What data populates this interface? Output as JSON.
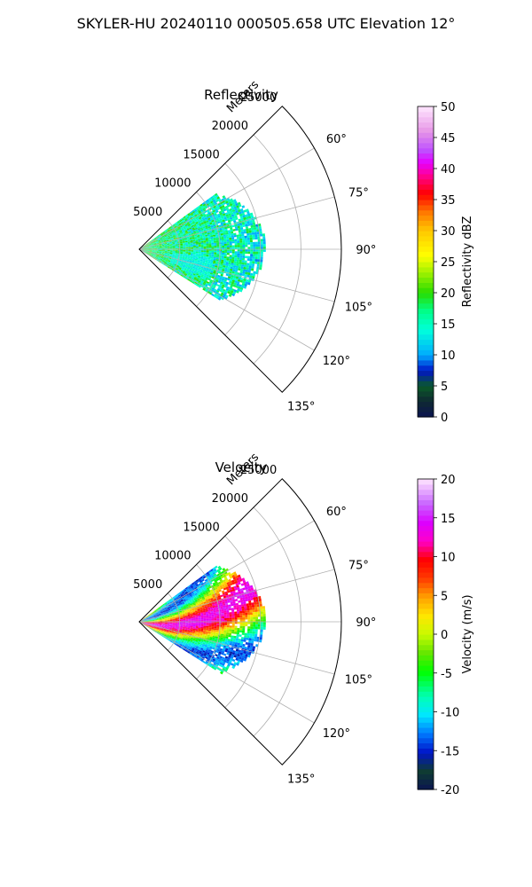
{
  "figure": {
    "title": "SKYLER-HU  20240110  000505.658 UTC Elevation 12°"
  },
  "chart_data": [
    {
      "type": "heatmap",
      "projection": "polar-sector",
      "title": "Reflectivity",
      "radial_label": "Meters",
      "radial_ticks": [
        5000,
        10000,
        15000,
        20000,
        25000
      ],
      "rlim": [
        0,
        25000
      ],
      "angle_ticks": [
        "60°",
        "75°",
        "90°",
        "105°",
        "120°",
        "135°"
      ],
      "angle_tick_values": [
        60,
        75,
        90,
        105,
        120,
        135
      ],
      "theta_range": [
        45,
        135
      ],
      "grid": true,
      "colorbar": {
        "label": "Reflectivity dBZ",
        "ticks": [
          0,
          5,
          10,
          15,
          20,
          25,
          30,
          35,
          40,
          45,
          50
        ],
        "range": [
          0,
          50
        ]
      },
      "echo_extent": {
        "azimuth_range": [
          54,
          122
        ],
        "range_max": 15000,
        "dominant_values": [
          14,
          18,
          22,
          25
        ]
      }
    },
    {
      "type": "heatmap",
      "projection": "polar-sector",
      "title": "Velocity",
      "radial_label": "Meters",
      "radial_ticks": [
        5000,
        10000,
        15000,
        20000,
        25000
      ],
      "rlim": [
        0,
        25000
      ],
      "angle_ticks": [
        "60°",
        "75°",
        "90°",
        "105°",
        "120°",
        "135°"
      ],
      "angle_tick_values": [
        60,
        75,
        90,
        105,
        120,
        135
      ],
      "theta_range": [
        45,
        135
      ],
      "grid": true,
      "colorbar": {
        "label": "Velocity (m/s)",
        "ticks": [
          -20,
          -15,
          -10,
          -5,
          0,
          5,
          10,
          15,
          20
        ],
        "range": [
          -20,
          20
        ]
      },
      "echo_extent": {
        "azimuth_range": [
          54,
          122
        ],
        "range_max": 15000,
        "dominant_values": [
          -8,
          -3,
          2,
          8,
          14
        ]
      }
    }
  ]
}
